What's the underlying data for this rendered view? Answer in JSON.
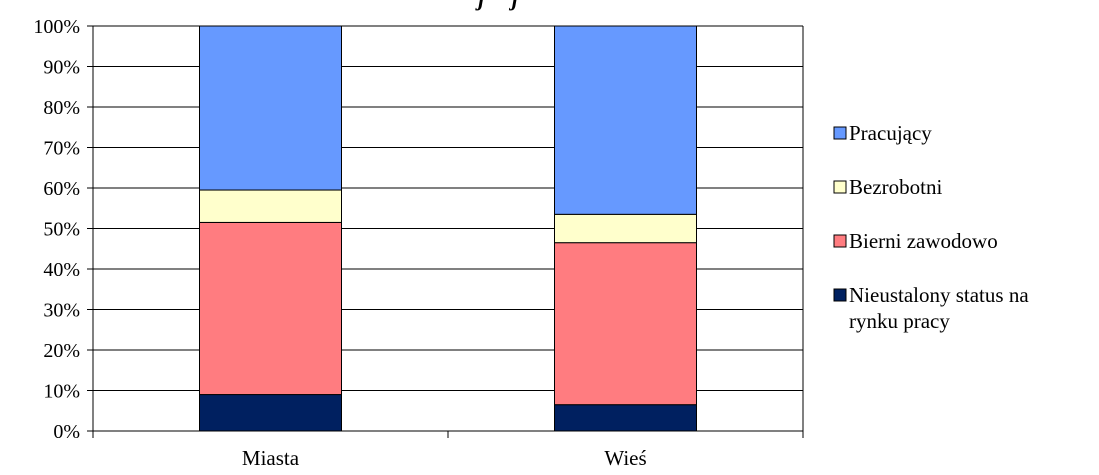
{
  "chart_data": {
    "type": "bar",
    "stacked": true,
    "title_fragment": "j     j",
    "categories": [
      "Miasta",
      "Wieś"
    ],
    "series": [
      {
        "name": "Nieustalony status na rynku pracy",
        "name_lines": [
          "Nieustalony status na",
          "rynku pracy"
        ],
        "color": "#002060",
        "values": [
          9,
          6.5
        ]
      },
      {
        "name": "Bierni zawodowo",
        "name_lines": [
          "Bierni zawodowo"
        ],
        "color": "#FF7C80",
        "values": [
          42.5,
          40
        ]
      },
      {
        "name": "Bezrobotni",
        "name_lines": [
          "Bezrobotni"
        ],
        "color": "#FFFFCC",
        "values": [
          8,
          7
        ]
      },
      {
        "name": "Pracujący",
        "name_lines": [
          "Pracujący"
        ],
        "color": "#6699FF",
        "values": [
          40.5,
          46.5
        ]
      }
    ],
    "ylim": [
      0,
      100
    ],
    "yticks": [
      "0%",
      "10%",
      "20%",
      "30%",
      "40%",
      "50%",
      "60%",
      "70%",
      "80%",
      "90%",
      "100%"
    ],
    "grid": true,
    "legend_position": "right",
    "legend_order": [
      "Pracujący",
      "Bezrobotni",
      "Bierni zawodowo",
      "Nieustalony status na rynku pracy"
    ]
  }
}
